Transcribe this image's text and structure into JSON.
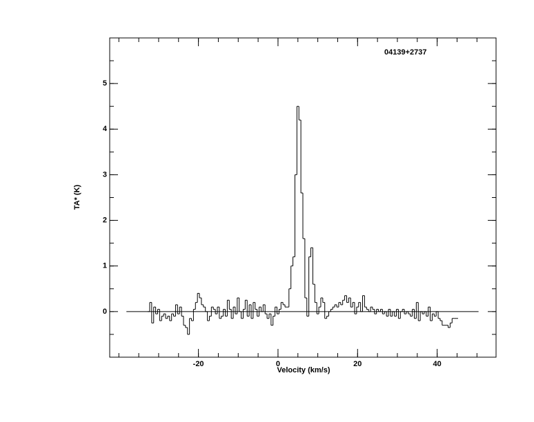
{
  "chart_data": {
    "type": "step",
    "title": "04139+2737",
    "xlabel": "Velocity (km/s)",
    "ylabel": "TA* (K)",
    "xlim": [
      -42.3,
      54.8
    ],
    "ylim": [
      -1,
      6
    ],
    "xticks": [
      -20,
      0,
      20,
      40
    ],
    "yticks": [
      0,
      1,
      2,
      3,
      4,
      5
    ],
    "x_minor_ticks": [
      -40,
      -35,
      -30,
      -25,
      -20,
      -15,
      -10,
      -5,
      0,
      5,
      10,
      15,
      20,
      25,
      30,
      35,
      40,
      45,
      50
    ],
    "y_minor_ticks": [
      -0.5,
      0,
      0.5,
      1,
      1.5,
      2,
      2.5,
      3,
      3.5,
      4,
      4.5,
      5,
      5.5
    ],
    "channel_width": 0.5,
    "color": "#000000",
    "zero_line": {
      "x": [
        -38.1,
        50.4
      ],
      "y": 0
    },
    "x": [
      -32.5,
      -32,
      -31.5,
      -31,
      -30.5,
      -30,
      -29.5,
      -29,
      -28.5,
      -28,
      -27.5,
      -27,
      -26.5,
      -26,
      -25.5,
      -25,
      -24.5,
      -24,
      -23.5,
      -23,
      -22.5,
      -22,
      -21.5,
      -21,
      -20.5,
      -20,
      -19.5,
      -19,
      -18.5,
      -18,
      -17.5,
      -17,
      -16.5,
      -16,
      -15.5,
      -15,
      -14.5,
      -14,
      -13.5,
      -13,
      -12.5,
      -12,
      -11.5,
      -11,
      -10.5,
      -10,
      -9.5,
      -9,
      -8.5,
      -8,
      -7.5,
      -7,
      -6.5,
      -6,
      -5.5,
      -5,
      -4.5,
      -4,
      -3.5,
      -3,
      -2.5,
      -2,
      -1.5,
      -1,
      -0.5,
      0,
      0.5,
      1,
      1.5,
      2,
      2.5,
      3,
      3.5,
      4,
      4.5,
      5,
      5.5,
      6,
      6.5,
      7,
      7.5,
      8,
      8.5,
      9,
      9.5,
      10,
      10.5,
      11,
      11.5,
      12,
      12.5,
      13,
      13.5,
      14,
      14.5,
      15,
      15.5,
      16,
      16.5,
      17,
      17.5,
      18,
      18.5,
      19,
      19.5,
      20,
      20.5,
      21,
      21.5,
      22,
      22.5,
      23,
      23.5,
      24,
      24.5,
      25,
      25.5,
      26,
      26.5,
      27,
      27.5,
      28,
      28.5,
      29,
      29.5,
      30,
      30.5,
      31,
      31.5,
      32,
      32.5,
      33,
      33.5,
      34,
      34.5,
      35,
      35.5,
      36,
      36.5,
      37,
      37.5,
      38,
      38.5,
      39,
      39.5,
      40,
      40.5,
      41,
      41.5,
      42,
      42.5,
      43,
      43.5,
      44,
      44.5,
      45
    ],
    "values": [
      0,
      0.2,
      -0.25,
      0.1,
      -0.05,
      0.05,
      -0.2,
      -0.1,
      -0.05,
      -0.15,
      -0.1,
      -0.2,
      -0.05,
      -0.1,
      0.15,
      -0.05,
      0.1,
      -0.1,
      -0.3,
      -0.35,
      -0.5,
      -0.15,
      -0.2,
      0.05,
      0.2,
      0.4,
      0.3,
      0.15,
      0.1,
      0,
      -0.2,
      -0.1,
      0.1,
      0.05,
      -0.05,
      0.1,
      -0.15,
      -0.1,
      0.05,
      -0.1,
      0.25,
      0.05,
      -0.15,
      0.1,
      -0.05,
      0.3,
      0,
      -0.15,
      0.05,
      0.25,
      -0.1,
      0.15,
      -0.15,
      0.2,
      0.05,
      -0.1,
      0.1,
      0,
      0.15,
      -0.05,
      -0.15,
      -0.05,
      -0.3,
      -0.1,
      0.1,
      -0.05,
      0.05,
      0.2,
      0.15,
      0.1,
      0.1,
      0.5,
      1.0,
      1.2,
      3.0,
      4.5,
      4.2,
      2.6,
      1.6,
      0.3,
      -0.1,
      1.2,
      1.4,
      0.6,
      0.2,
      -0.05,
      0.1,
      0.3,
      0.2,
      -0.15,
      -0.1,
      0,
      0.05,
      0.1,
      0.15,
      0.1,
      0.2,
      0.15,
      0.25,
      0.35,
      0.2,
      0.3,
      0.1,
      0.2,
      -0.05,
      0.1,
      0.2,
      0,
      0.35,
      0.1,
      0.05,
      0,
      0.1,
      0.05,
      -0.05,
      0.05,
      0,
      0.05,
      -0.05,
      0,
      -0.1,
      0.05,
      -0.1,
      0,
      -0.1,
      0.05,
      -0.15,
      0,
      0.05,
      -0.05,
      0,
      -0.05,
      -0.1,
      0.05,
      -0.15,
      0.2,
      -0.2,
      0,
      -0.05,
      0,
      -0.1,
      0.1,
      -0.2,
      -0.05,
      -0.1,
      0,
      -0.15,
      -0.2,
      -0.3,
      -0.3,
      -0.3,
      -0.35,
      -0.25,
      -0.15,
      -0.15,
      -0.15
    ]
  }
}
